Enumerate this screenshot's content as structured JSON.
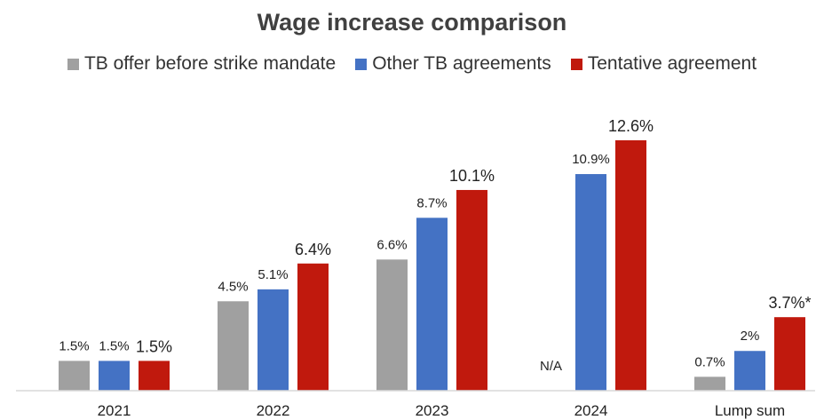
{
  "chart_data": {
    "type": "bar",
    "title": "Wage increase comparison",
    "xlabel": "",
    "ylabel": "",
    "ylim": [
      0,
      12.6
    ],
    "grid": false,
    "legend_position": "top",
    "categories": [
      "2021",
      "2022",
      "2023",
      "2024",
      "Lump sum"
    ],
    "series": [
      {
        "name": "TB offer before strike mandate",
        "color": "#a0a0a0",
        "values": [
          1.5,
          4.5,
          6.6,
          null,
          0.7
        ],
        "labels": [
          "1.5%",
          "4.5%",
          "6.6%",
          "N/A",
          "0.7%"
        ]
      },
      {
        "name": "Other TB agreements",
        "color": "#4472c4",
        "values": [
          1.5,
          5.1,
          8.7,
          10.9,
          2
        ],
        "labels": [
          "1.5%",
          "5.1%",
          "8.7%",
          "10.9%",
          "2%"
        ]
      },
      {
        "name": "Tentative agreement",
        "color": "#c0190d",
        "values": [
          1.5,
          6.4,
          10.1,
          12.6,
          3.7
        ],
        "labels": [
          "1.5%",
          "6.4%",
          "10.1%",
          "12.6%",
          "3.7%*"
        ]
      }
    ]
  }
}
